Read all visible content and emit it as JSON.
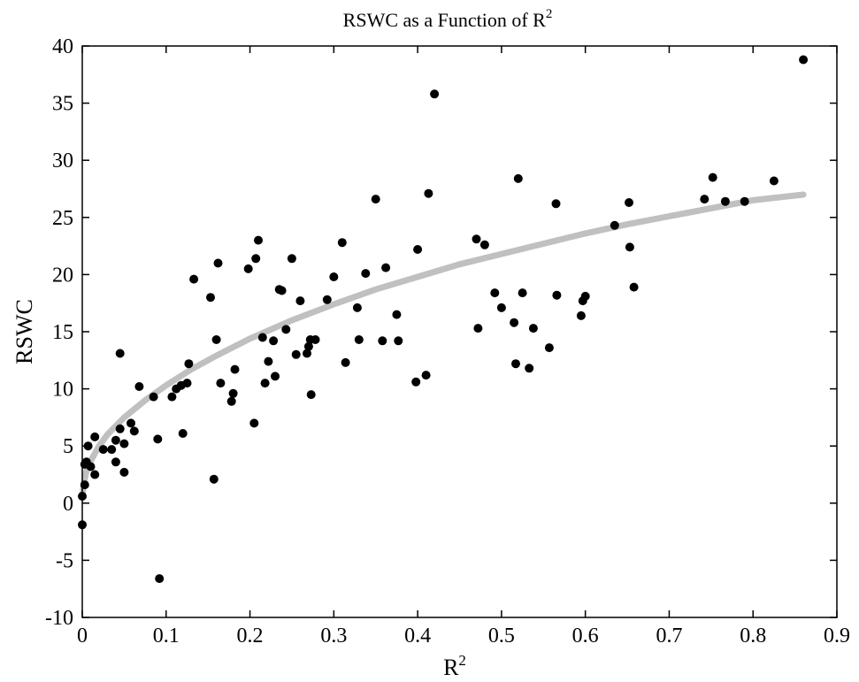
{
  "chart_data": {
    "type": "scatter",
    "title": "RSWC as a Function of R",
    "title_sup": "2",
    "xlabel": "R",
    "xlabel_sup": "2",
    "ylabel": "RSWC",
    "xlim": [
      0,
      0.9
    ],
    "ylim": [
      -10,
      40
    ],
    "xticks": [
      0,
      0.1,
      0.2,
      0.3,
      0.4,
      0.5,
      0.6,
      0.7,
      0.8,
      0.9
    ],
    "xtick_labels": [
      "0",
      "0.1",
      "0.2",
      "0.3",
      "0.4",
      "0.5",
      "0.6",
      "0.7",
      "0.8",
      "0.9"
    ],
    "yticks": [
      -10,
      -5,
      0,
      5,
      10,
      15,
      20,
      25,
      30,
      35,
      40
    ],
    "ytick_labels": [
      "-10",
      "-5",
      "0",
      "5",
      "10",
      "15",
      "20",
      "25",
      "30",
      "35",
      "40"
    ],
    "grid": false,
    "legend": "none",
    "marker_color": "#000000",
    "fit_color": "#c0c0c0",
    "fit": {
      "x": [
        0.0005,
        0.002,
        0.005,
        0.01,
        0.02,
        0.03,
        0.05,
        0.075,
        0.1,
        0.13,
        0.16,
        0.2,
        0.25,
        0.3,
        0.35,
        0.4,
        0.45,
        0.5,
        0.55,
        0.6,
        0.65,
        0.7,
        0.75,
        0.8,
        0.86
      ],
      "y": [
        0.9,
        1.8,
        2.8,
        3.7,
        5.0,
        6.0,
        7.5,
        9.0,
        10.3,
        11.7,
        12.9,
        14.4,
        16.0,
        17.4,
        18.7,
        19.8,
        20.9,
        21.8,
        22.7,
        23.6,
        24.4,
        25.1,
        25.8,
        26.5,
        27.0
      ]
    },
    "points": [
      [
        0.0,
        -1.9
      ],
      [
        0.0,
        0.6
      ],
      [
        0.003,
        1.6
      ],
      [
        0.003,
        3.4
      ],
      [
        0.005,
        3.6
      ],
      [
        0.007,
        5.0
      ],
      [
        0.01,
        3.2
      ],
      [
        0.015,
        2.5
      ],
      [
        0.015,
        5.8
      ],
      [
        0.025,
        4.7
      ],
      [
        0.035,
        4.7
      ],
      [
        0.04,
        5.5
      ],
      [
        0.04,
        3.6
      ],
      [
        0.045,
        6.5
      ],
      [
        0.045,
        13.1
      ],
      [
        0.05,
        2.7
      ],
      [
        0.05,
        5.2
      ],
      [
        0.058,
        7.0
      ],
      [
        0.062,
        6.3
      ],
      [
        0.068,
        10.2
      ],
      [
        0.085,
        9.3
      ],
      [
        0.09,
        5.6
      ],
      [
        0.092,
        -6.6
      ],
      [
        0.107,
        9.3
      ],
      [
        0.112,
        10.0
      ],
      [
        0.118,
        10.3
      ],
      [
        0.12,
        6.1
      ],
      [
        0.125,
        10.5
      ],
      [
        0.127,
        12.2
      ],
      [
        0.133,
        19.6
      ],
      [
        0.153,
        18.0
      ],
      [
        0.157,
        2.1
      ],
      [
        0.16,
        14.3
      ],
      [
        0.162,
        21.0
      ],
      [
        0.165,
        10.5
      ],
      [
        0.178,
        8.9
      ],
      [
        0.18,
        9.6
      ],
      [
        0.182,
        11.7
      ],
      [
        0.198,
        20.5
      ],
      [
        0.205,
        7.0
      ],
      [
        0.207,
        21.4
      ],
      [
        0.21,
        23.0
      ],
      [
        0.215,
        14.5
      ],
      [
        0.218,
        10.5
      ],
      [
        0.222,
        12.4
      ],
      [
        0.228,
        14.2
      ],
      [
        0.23,
        11.1
      ],
      [
        0.235,
        18.7
      ],
      [
        0.238,
        18.6
      ],
      [
        0.243,
        15.2
      ],
      [
        0.25,
        21.4
      ],
      [
        0.255,
        13.0
      ],
      [
        0.26,
        17.7
      ],
      [
        0.268,
        13.1
      ],
      [
        0.27,
        13.7
      ],
      [
        0.272,
        14.3
      ],
      [
        0.273,
        9.5
      ],
      [
        0.278,
        14.3
      ],
      [
        0.292,
        17.8
      ],
      [
        0.3,
        19.8
      ],
      [
        0.31,
        22.8
      ],
      [
        0.314,
        12.3
      ],
      [
        0.328,
        17.1
      ],
      [
        0.33,
        14.3
      ],
      [
        0.338,
        20.1
      ],
      [
        0.35,
        26.6
      ],
      [
        0.358,
        14.2
      ],
      [
        0.362,
        20.6
      ],
      [
        0.375,
        16.5
      ],
      [
        0.377,
        14.2
      ],
      [
        0.398,
        10.6
      ],
      [
        0.4,
        22.2
      ],
      [
        0.41,
        11.2
      ],
      [
        0.413,
        27.1
      ],
      [
        0.42,
        35.8
      ],
      [
        0.47,
        23.1
      ],
      [
        0.472,
        15.3
      ],
      [
        0.48,
        22.6
      ],
      [
        0.492,
        18.4
      ],
      [
        0.5,
        17.1
      ],
      [
        0.515,
        15.8
      ],
      [
        0.517,
        12.2
      ],
      [
        0.52,
        28.4
      ],
      [
        0.525,
        18.4
      ],
      [
        0.533,
        11.8
      ],
      [
        0.538,
        15.3
      ],
      [
        0.557,
        13.6
      ],
      [
        0.565,
        26.2
      ],
      [
        0.566,
        18.2
      ],
      [
        0.595,
        16.4
      ],
      [
        0.597,
        17.7
      ],
      [
        0.6,
        18.1
      ],
      [
        0.635,
        24.3
      ],
      [
        0.652,
        26.3
      ],
      [
        0.653,
        22.4
      ],
      [
        0.658,
        18.9
      ],
      [
        0.742,
        26.6
      ],
      [
        0.752,
        28.5
      ],
      [
        0.767,
        26.4
      ],
      [
        0.79,
        26.4
      ],
      [
        0.825,
        28.2
      ],
      [
        0.86,
        38.8
      ]
    ]
  }
}
